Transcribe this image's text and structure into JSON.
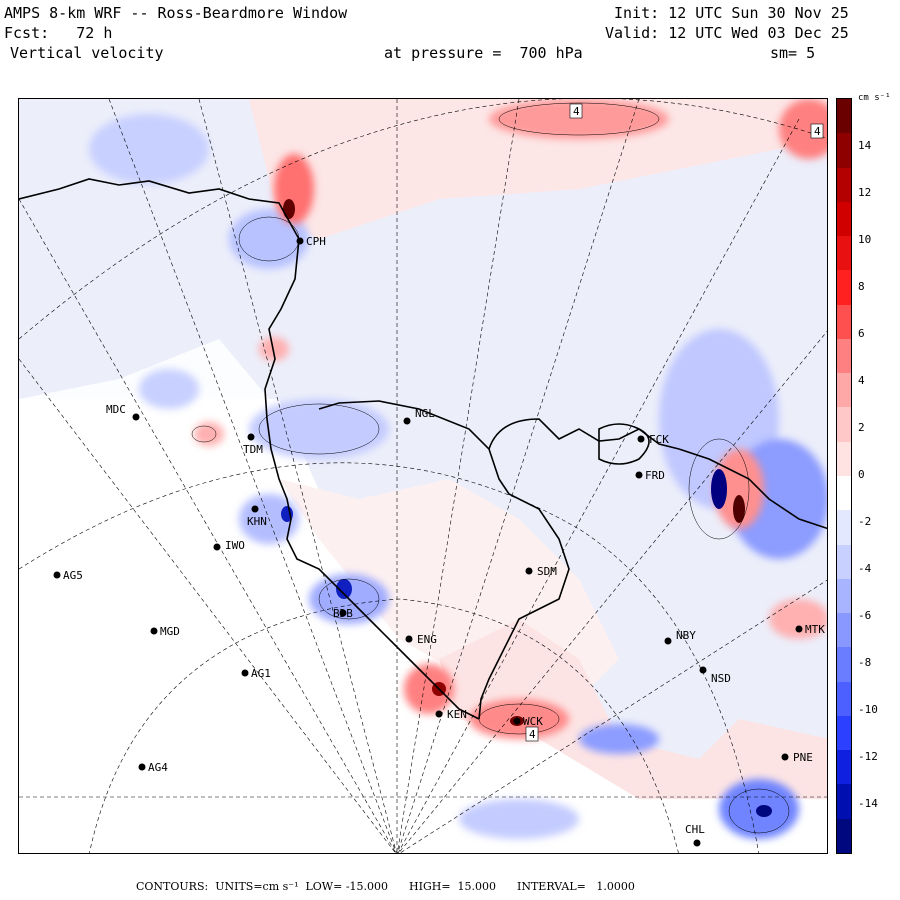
{
  "header": {
    "title": "AMPS 8-km WRF -- Ross-Beardmore Window",
    "init": "Init: 12 UTC Sun 30 Nov 25",
    "fcst": "Fcst:   72 h",
    "valid": "Valid: 12 UTC Wed 03 Dec 25",
    "variable": "Vertical velocity",
    "pressure": "at pressure =  700 hPa",
    "smoothing": "sm= 5"
  },
  "colorbar": {
    "units_label": "cm s⁻¹",
    "ticks": [
      "14",
      "12",
      "10",
      "8",
      "6",
      "4",
      "2",
      "0",
      "-2",
      "-4",
      "-6",
      "-8",
      "-10",
      "-12",
      "-14"
    ],
    "colors": [
      "#6b0000",
      "#8e0000",
      "#b30000",
      "#d00000",
      "#e81010",
      "#ff2020",
      "#ff5050",
      "#ff8080",
      "#ffa8a8",
      "#ffc8c8",
      "#ffe2e2",
      "#ffffff",
      "#e4e8ff",
      "#c8d0ff",
      "#a8b4ff",
      "#8898ff",
      "#6a7cff",
      "#4c60ff",
      "#2c40ff",
      "#1020e0",
      "#0010b0",
      "#000880"
    ]
  },
  "stations": [
    {
      "id": "CPH",
      "name": "CPH"
    },
    {
      "id": "MDC",
      "name": "MDC"
    },
    {
      "id": "NGL",
      "name": "NGL"
    },
    {
      "id": "TDM",
      "name": "TDM"
    },
    {
      "id": "FCK",
      "name": "FCK"
    },
    {
      "id": "FRD",
      "name": "FRD"
    },
    {
      "id": "KHN",
      "name": "KHN"
    },
    {
      "id": "IWO",
      "name": "IWO"
    },
    {
      "id": "AG5",
      "name": "AG5"
    },
    {
      "id": "SDM",
      "name": "SDM"
    },
    {
      "id": "BDB",
      "name": "BDB"
    },
    {
      "id": "MGD",
      "name": "MGD"
    },
    {
      "id": "NBY",
      "name": "NBY"
    },
    {
      "id": "MTK",
      "name": "MTK"
    },
    {
      "id": "AG1",
      "name": "AG1"
    },
    {
      "id": "NSD",
      "name": "NSD"
    },
    {
      "id": "WCK",
      "name": "WCK"
    },
    {
      "id": "PNE",
      "name": "PNE"
    },
    {
      "id": "AG4",
      "name": "AG4"
    },
    {
      "id": "CHL",
      "name": "CHL"
    },
    {
      "id": "ENG",
      "name": "ENG"
    },
    {
      "id": "KEN",
      "name": "KEN"
    }
  ],
  "contour_labels": [
    "4",
    "4",
    "4"
  ],
  "footer": {
    "contours": "CONTOURS:  UNITS=cm s⁻¹  LOW= -15.000      HIGH=  15.000      INTERVAL=   1.0000"
  }
}
